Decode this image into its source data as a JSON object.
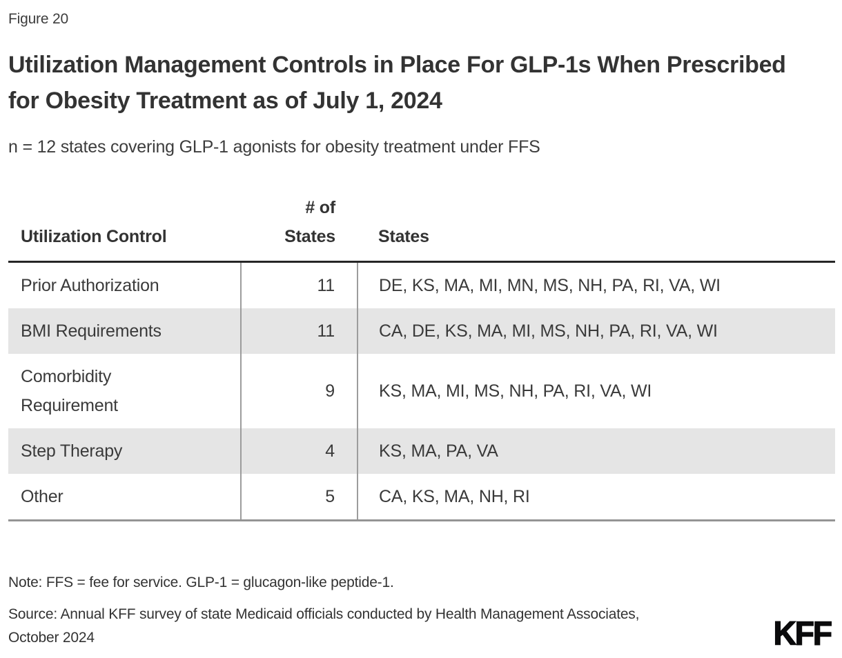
{
  "figure_label": "Figure 20",
  "title": "Utilization Management Controls in Place For GLP-1s When Prescribed for Obesity Treatment as of July 1, 2024",
  "subtitle": "n = 12 states covering GLP-1 agonists for obesity treatment under FFS",
  "chart_data": {
    "type": "table",
    "headers": [
      "Utilization Control",
      "# of\nStates",
      "States"
    ],
    "rows": [
      {
        "control": "Prior Authorization",
        "count": 11,
        "states": "DE, KS, MA, MI, MN, MS, NH, PA, RI, VA, WI"
      },
      {
        "control": "BMI Requirements",
        "count": 11,
        "states": "CA, DE, KS, MA, MI, MS, NH, PA, RI, VA, WI"
      },
      {
        "control": "Comorbidity Requirement",
        "count": 9,
        "states": "KS, MA, MI, MS, NH, PA, RI, VA, WI"
      },
      {
        "control": "Step Therapy",
        "count": 4,
        "states": "KS, MA, PA, VA"
      },
      {
        "control": "Other",
        "count": 5,
        "states": "CA, KS, MA, NH, RI"
      }
    ],
    "n_total": 12,
    "title": "Utilization Management Controls in Place For GLP-1s When Prescribed for Obesity Treatment as of July 1, 2024",
    "layout": {
      "shaded_rows": "even",
      "count_alignment": "right"
    }
  },
  "note": "Note: FFS = fee for service. GLP-1 = glucagon-like peptide-1.",
  "source": "Source: Annual KFF survey of state Medicaid officials conducted by Health Management Associates, October 2024",
  "logo": "KFF",
  "colors": {
    "text": "#333333",
    "row_shade": "#e5e5e5",
    "header_rule": "#262626",
    "table_rule": "#949494",
    "divider": "#9c9c9c",
    "logo": "#0b0b0c"
  }
}
